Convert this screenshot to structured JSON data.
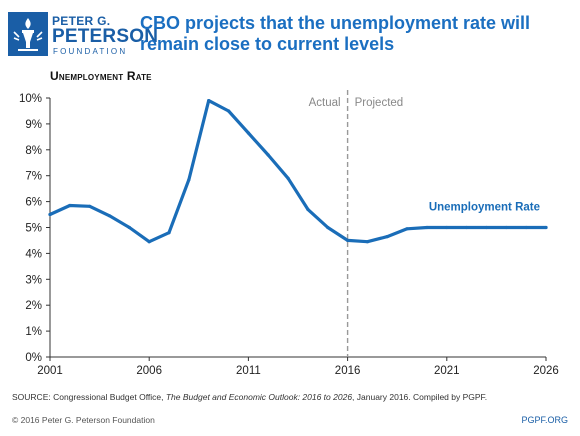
{
  "logo": {
    "line1": "PETER G.",
    "line2": "PETERSON",
    "line3": "FOUNDATION"
  },
  "title": "CBO projects that the unemployment rate will remain close to current levels",
  "source": {
    "prefix": "SOURCE: Congressional Budget Office, ",
    "italic": "The Budget and Economic Outlook: 2016 to 2026",
    "suffix": ", January 2016. Compiled by PGPF."
  },
  "footer": {
    "copyright": "© 2016 Peter G. Peterson Foundation",
    "site": "PGPF.ORG"
  },
  "colors": {
    "line": "#1a6db8",
    "brand": "#1a5ea6",
    "title": "#1b6fc1",
    "divider": "#999999"
  },
  "chart_data": {
    "type": "line",
    "ylabel": "Unemployment Rate",
    "xlabel": "",
    "ylim": [
      0,
      10
    ],
    "xlim": [
      2001,
      2026
    ],
    "x_ticks": [
      2001,
      2006,
      2011,
      2016,
      2021,
      2026
    ],
    "y_ticks": [
      "0%",
      "1%",
      "2%",
      "3%",
      "4%",
      "5%",
      "6%",
      "7%",
      "8%",
      "9%",
      "10%"
    ],
    "divider": {
      "x": 2016,
      "left_label": "Actual",
      "right_label": "Projected"
    },
    "grid": false,
    "series": [
      {
        "name": "Unemployment Rate",
        "x": [
          2001,
          2002,
          2003,
          2004,
          2005,
          2006,
          2007,
          2008,
          2009,
          2010,
          2011,
          2012,
          2013,
          2014,
          2015,
          2016,
          2017,
          2018,
          2019,
          2020,
          2021,
          2022,
          2023,
          2024,
          2025,
          2026
        ],
        "y": [
          5.5,
          5.85,
          5.82,
          5.45,
          5.0,
          4.45,
          4.8,
          6.85,
          9.9,
          9.5,
          8.65,
          7.8,
          6.9,
          5.7,
          5.0,
          4.5,
          4.45,
          4.65,
          4.95,
          5.0,
          5.0,
          5.0,
          5.0,
          5.0,
          5.0,
          5.0
        ]
      }
    ]
  }
}
